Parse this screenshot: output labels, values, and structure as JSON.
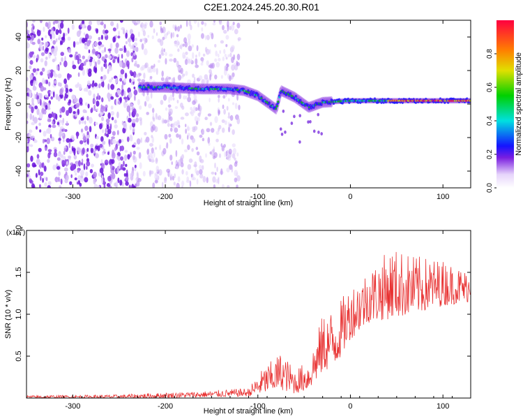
{
  "title": "C2E1.2024.245.20.30.R01",
  "chart_data": [
    {
      "type": "heatmap",
      "title": "C2E1.2024.245.20.30.R01",
      "xlabel": "Height of straight line (km)",
      "ylabel": "Frequency (Hz)",
      "xlim": [
        -350,
        130
      ],
      "ylim": [
        -50,
        50
      ],
      "xticks": [
        -300,
        -200,
        -100,
        0,
        100
      ],
      "xticklabels": [
        "-300",
        "-200",
        "-100",
        "0",
        "100"
      ],
      "yticks": [
        -40,
        -20,
        0,
        20,
        40
      ],
      "yticklabels": [
        "-40",
        "-20",
        "0",
        "20",
        "40"
      ],
      "colorbar": {
        "label": "Normalized spectral amplitude",
        "range": [
          0,
          1
        ],
        "ticks": [
          0.0,
          0.2,
          0.4,
          0.6,
          0.8
        ],
        "ticklabels": [
          "0.0",
          "0.2",
          "0.4",
          "0.6",
          "0.8"
        ]
      },
      "ridge": [
        {
          "x": -228,
          "y": 10
        },
        {
          "x": -200,
          "y": 10
        },
        {
          "x": -160,
          "y": 9
        },
        {
          "x": -130,
          "y": 9
        },
        {
          "x": -115,
          "y": 8
        },
        {
          "x": -100,
          "y": 5
        },
        {
          "x": -90,
          "y": 1
        },
        {
          "x": -80,
          "y": -3
        },
        {
          "x": -75,
          "y": 8
        },
        {
          "x": -60,
          "y": 4
        },
        {
          "x": -45,
          "y": -2
        },
        {
          "x": -30,
          "y": 1
        },
        {
          "x": 0,
          "y": 2
        },
        {
          "x": 50,
          "y": 2
        },
        {
          "x": 130,
          "y": 2
        }
      ],
      "noise_region_x": [
        -350,
        -120
      ]
    },
    {
      "type": "line",
      "xlabel": "Height of straight line (km)",
      "ylabel": "SNR (10 * v/v)",
      "y_multiplier": "(x10",
      "y_multiplier_exp": "4",
      "xlim": [
        -350,
        130
      ],
      "ylim": [
        0,
        2.0
      ],
      "xticks": [
        -300,
        -200,
        -100,
        0,
        100
      ],
      "xticklabels": [
        "-300",
        "-200",
        "-100",
        "0",
        "100"
      ],
      "yticks": [
        0.5,
        1.0,
        1.5,
        2.0
      ],
      "yticklabels": [
        "0.5",
        "1.0",
        "1.5",
        "2.0"
      ],
      "series": [
        {
          "name": "SNR",
          "color": "#e83030",
          "envelope": [
            {
              "x": -350,
              "lo": 0.0,
              "hi": 0.03
            },
            {
              "x": -250,
              "lo": 0.0,
              "hi": 0.04
            },
            {
              "x": -215,
              "lo": 0.0,
              "hi": 0.06
            },
            {
              "x": -160,
              "lo": 0.01,
              "hi": 0.08
            },
            {
              "x": -110,
              "lo": 0.02,
              "hi": 0.12
            },
            {
              "x": -95,
              "lo": 0.05,
              "hi": 0.35
            },
            {
              "x": -75,
              "lo": 0.1,
              "hi": 0.55
            },
            {
              "x": -60,
              "lo": 0.05,
              "hi": 0.35
            },
            {
              "x": -45,
              "lo": 0.1,
              "hi": 0.45
            },
            {
              "x": -30,
              "lo": 0.3,
              "hi": 1.0
            },
            {
              "x": -15,
              "lo": 0.4,
              "hi": 1.1
            },
            {
              "x": 0,
              "lo": 0.7,
              "hi": 1.35
            },
            {
              "x": 20,
              "lo": 0.9,
              "hi": 1.55
            },
            {
              "x": 45,
              "lo": 0.95,
              "hi": 1.8
            },
            {
              "x": 70,
              "lo": 1.0,
              "hi": 1.7
            },
            {
              "x": 100,
              "lo": 1.1,
              "hi": 1.65
            },
            {
              "x": 130,
              "lo": 1.15,
              "hi": 1.5
            }
          ]
        }
      ]
    }
  ]
}
